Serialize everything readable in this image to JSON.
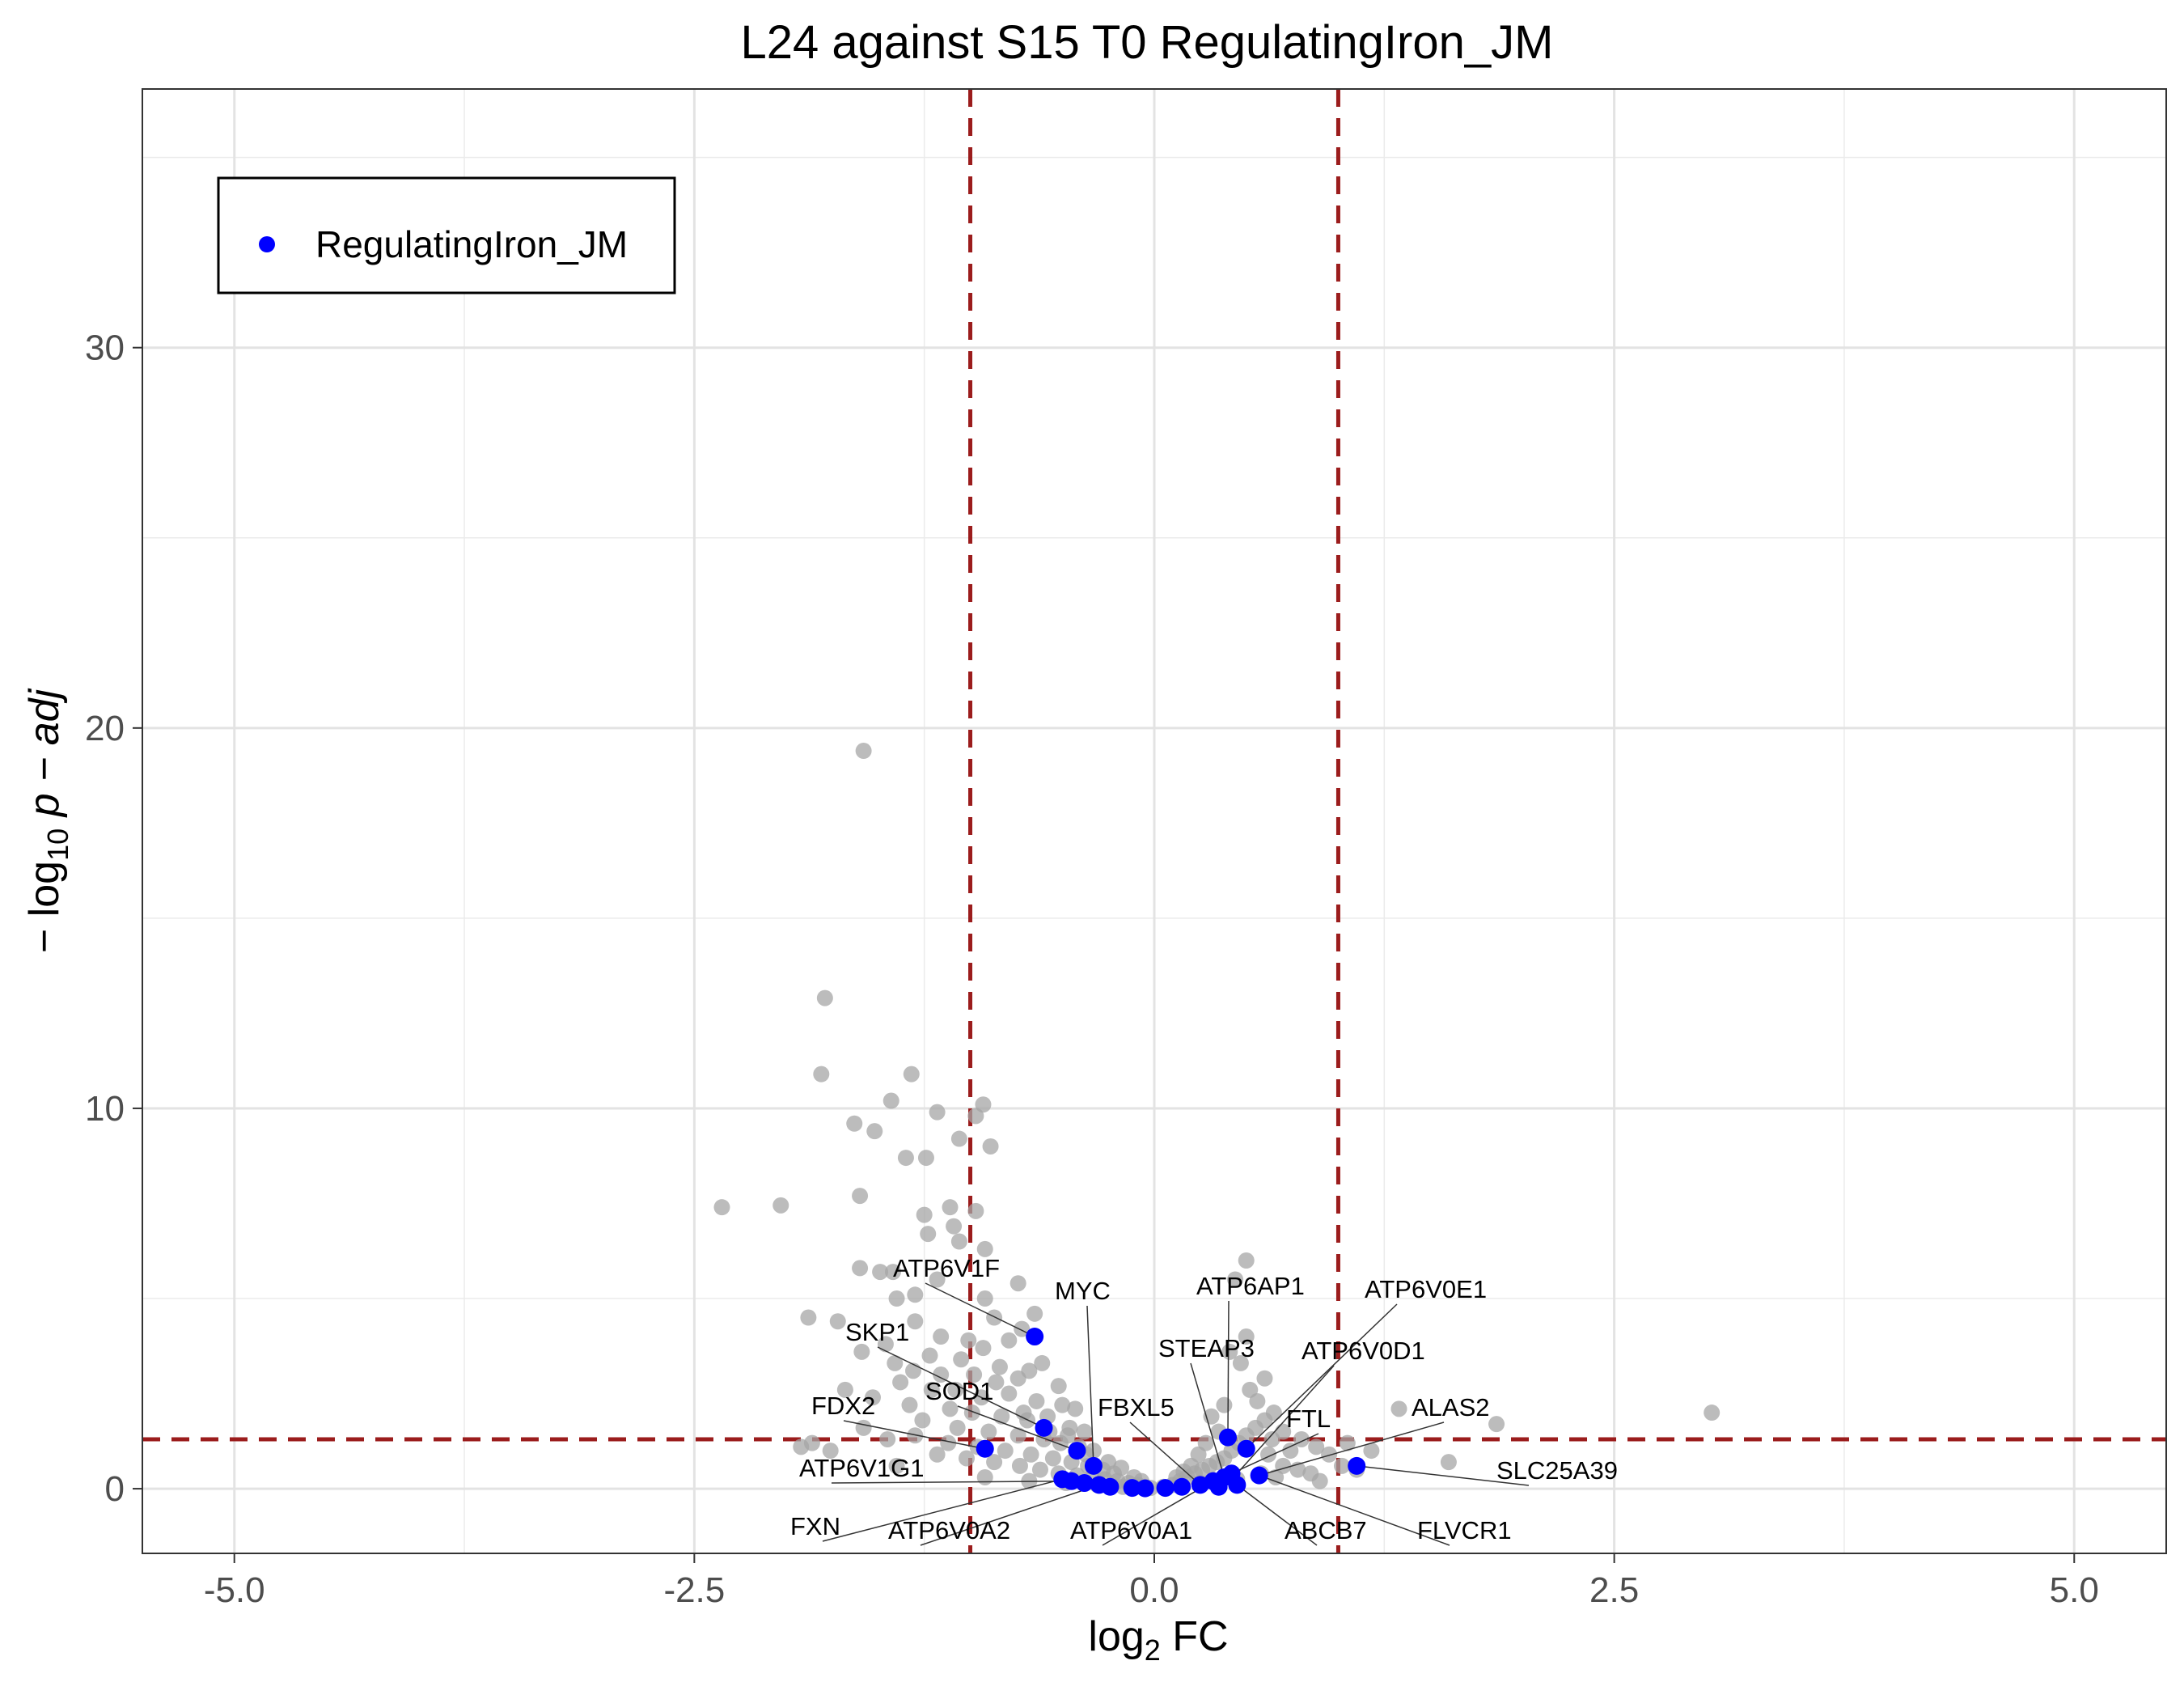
{
  "chart_data": {
    "type": "scatter",
    "title": "L24 against S15 T0 RegulatingIron_JM",
    "xlabel": "log2 FC",
    "ylabel": "-log10 p - adj",
    "xlim": [
      -5.5,
      5.5
    ],
    "ylim": [
      -1.7,
      36.8
    ],
    "x_ticks": [
      -5.0,
      -2.5,
      0.0,
      2.5,
      5.0
    ],
    "x_tick_labels": [
      "-5.0",
      "-2.5",
      "0.0",
      "2.5",
      "5.0"
    ],
    "y_ticks": [
      0,
      10,
      20,
      30
    ],
    "y_tick_labels": [
      "0",
      "10",
      "20",
      "30"
    ],
    "grid": true,
    "legend": {
      "position": "top-left",
      "entries": [
        "RegulatingIron_JM"
      ]
    },
    "thresholds": {
      "vertical": [
        -1,
        1
      ],
      "horizontal": 1.3,
      "color": "#9b1c1c"
    },
    "colors": {
      "background_genes": "#a6a6a6",
      "highlight": "#0000ff"
    },
    "series": [
      {
        "name": "",
        "color": "#a6a6a6",
        "points": [
          [
            -1.58,
            19.4
          ],
          [
            -1.79,
            12.9
          ],
          [
            -1.81,
            10.9
          ],
          [
            -1.32,
            10.9
          ],
          [
            -1.43,
            10.2
          ],
          [
            -0.93,
            10.1
          ],
          [
            -0.97,
            9.8
          ],
          [
            -1.63,
            9.6
          ],
          [
            -1.52,
            9.4
          ],
          [
            -1.18,
            9.9
          ],
          [
            -1.06,
            9.2
          ],
          [
            -0.89,
            9.0
          ],
          [
            -1.35,
            8.7
          ],
          [
            -1.24,
            8.7
          ],
          [
            -2.35,
            7.4
          ],
          [
            -2.03,
            7.45
          ],
          [
            -1.6,
            7.7
          ],
          [
            -1.11,
            7.4
          ],
          [
            -0.97,
            7.3
          ],
          [
            -1.25,
            7.2
          ],
          [
            -1.09,
            6.9
          ],
          [
            -1.23,
            6.7
          ],
          [
            -1.06,
            6.5
          ],
          [
            -0.92,
            6.3
          ],
          [
            -1.6,
            5.8
          ],
          [
            -1.49,
            5.7
          ],
          [
            -1.42,
            5.7
          ],
          [
            -1.18,
            5.5
          ],
          [
            -0.74,
            5.4
          ],
          [
            -1.3,
            5.1
          ],
          [
            -1.4,
            5.0
          ],
          [
            -0.92,
            5.0
          ],
          [
            -1.88,
            4.5
          ],
          [
            -1.72,
            4.4
          ],
          [
            -1.3,
            4.4
          ],
          [
            -0.87,
            4.5
          ],
          [
            -0.65,
            4.6
          ],
          [
            -0.72,
            4.2
          ],
          [
            -1.16,
            4.0
          ],
          [
            -1.46,
            3.8
          ],
          [
            -1.59,
            3.6
          ],
          [
            -1.41,
            3.3
          ],
          [
            -1.22,
            3.5
          ],
          [
            -1.05,
            3.4
          ],
          [
            -0.93,
            3.7
          ],
          [
            -0.79,
            3.9
          ],
          [
            -0.68,
            3.1
          ],
          [
            -0.61,
            3.3
          ],
          [
            -1.31,
            3.1
          ],
          [
            -1.16,
            3.0
          ],
          [
            -0.98,
            3.0
          ],
          [
            -0.84,
            3.2
          ],
          [
            -0.74,
            2.9
          ],
          [
            -0.52,
            2.7
          ],
          [
            -1.38,
            2.8
          ],
          [
            -1.21,
            2.6
          ],
          [
            -1.08,
            2.6
          ],
          [
            -0.94,
            2.4
          ],
          [
            -0.79,
            2.5
          ],
          [
            -0.64,
            2.3
          ],
          [
            -0.5,
            2.2
          ],
          [
            -0.43,
            2.1
          ],
          [
            -1.68,
            2.6
          ],
          [
            -1.53,
            2.4
          ],
          [
            -1.33,
            2.2
          ],
          [
            -1.11,
            2.1
          ],
          [
            -0.99,
            2.0
          ],
          [
            -0.83,
            1.9
          ],
          [
            -0.69,
            1.8
          ],
          [
            -0.58,
            1.9
          ],
          [
            -0.46,
            1.6
          ],
          [
            -0.38,
            1.5
          ],
          [
            -1.26,
            1.8
          ],
          [
            -1.07,
            1.6
          ],
          [
            -0.9,
            1.5
          ],
          [
            -0.74,
            1.4
          ],
          [
            -0.6,
            1.3
          ],
          [
            -0.51,
            1.2
          ],
          [
            -0.41,
            1.1
          ],
          [
            -0.33,
            1.0
          ],
          [
            -1.3,
            1.4
          ],
          [
            -1.12,
            1.2
          ],
          [
            -0.96,
            1.1
          ],
          [
            -0.81,
            1.0
          ],
          [
            -0.67,
            0.9
          ],
          [
            -0.55,
            0.8
          ],
          [
            -0.45,
            0.7
          ],
          [
            -0.36,
            0.6
          ],
          [
            -0.28,
            0.5
          ],
          [
            -0.22,
            0.4
          ],
          [
            -1.45,
            1.3
          ],
          [
            -1.18,
            0.9
          ],
          [
            -1.02,
            0.8
          ],
          [
            -0.87,
            0.7
          ],
          [
            -0.73,
            0.6
          ],
          [
            -0.62,
            0.5
          ],
          [
            -0.52,
            0.4
          ],
          [
            -0.42,
            0.35
          ],
          [
            -0.34,
            0.3
          ],
          [
            -0.27,
            0.25
          ],
          [
            -0.2,
            0.2
          ],
          [
            -0.14,
            0.15
          ],
          [
            -0.09,
            0.1
          ],
          [
            -0.05,
            0.05
          ],
          [
            -0.02,
            0.02
          ],
          [
            -1.76,
            1.0
          ],
          [
            -1.58,
            1.6
          ],
          [
            -1.4,
            0.6
          ],
          [
            -0.92,
            0.3
          ],
          [
            -0.68,
            0.2
          ],
          [
            -0.48,
            0.15
          ],
          [
            -0.31,
            0.1
          ],
          [
            -0.17,
            0.05
          ],
          [
            -1.92,
            1.1
          ],
          [
            -1.86,
            1.2
          ],
          [
            -1.01,
            3.9
          ],
          [
            -0.86,
            2.8
          ],
          [
            -0.71,
            2.0
          ],
          [
            -0.57,
            1.5
          ],
          [
            -0.47,
            1.4
          ],
          [
            -0.37,
            0.9
          ],
          [
            -0.25,
            0.7
          ],
          [
            -0.18,
            0.55
          ],
          [
            -0.11,
            0.3
          ],
          [
            -0.07,
            0.2
          ],
          [
            0.05,
            0.05
          ],
          [
            0.1,
            0.1
          ],
          [
            0.14,
            0.2
          ],
          [
            0.18,
            0.3
          ],
          [
            0.22,
            0.4
          ],
          [
            0.26,
            0.5
          ],
          [
            0.3,
            0.6
          ],
          [
            0.34,
            0.7
          ],
          [
            0.38,
            0.8
          ],
          [
            0.42,
            1.0
          ],
          [
            0.46,
            1.2
          ],
          [
            0.5,
            1.4
          ],
          [
            0.55,
            1.6
          ],
          [
            0.6,
            1.8
          ],
          [
            0.65,
            2.0
          ],
          [
            0.52,
            2.6
          ],
          [
            0.6,
            2.9
          ],
          [
            0.47,
            3.3
          ],
          [
            0.41,
            3.6
          ],
          [
            0.5,
            4.0
          ],
          [
            0.56,
            2.3
          ],
          [
            0.7,
            1.5
          ],
          [
            0.8,
            1.3
          ],
          [
            0.88,
            1.1
          ],
          [
            0.95,
            0.9
          ],
          [
            0.5,
            6.0
          ],
          [
            0.44,
            5.5
          ],
          [
            0.38,
            2.2
          ],
          [
            0.31,
            1.9
          ],
          [
            0.35,
            1.5
          ],
          [
            0.28,
            1.2
          ],
          [
            0.24,
            0.9
          ],
          [
            0.2,
            0.6
          ],
          [
            0.16,
            0.45
          ],
          [
            0.12,
            0.3
          ],
          [
            0.7,
            0.6
          ],
          [
            0.78,
            0.5
          ],
          [
            0.85,
            0.4
          ],
          [
            1.02,
            0.6
          ],
          [
            1.1,
            0.5
          ],
          [
            1.05,
            1.2
          ],
          [
            1.18,
            1.0
          ],
          [
            1.33,
            2.1
          ],
          [
            1.86,
            1.7
          ],
          [
            1.6,
            0.7
          ],
          [
            3.03,
            2.0
          ],
          [
            0.62,
            0.9
          ],
          [
            0.58,
            0.4
          ],
          [
            0.66,
            0.3
          ],
          [
            0.45,
            0.25
          ],
          [
            0.33,
            0.2
          ],
          [
            0.25,
            0.15
          ],
          [
            0.9,
            0.2
          ],
          [
            0.74,
            1.0
          ],
          [
            0.64,
            1.3
          ]
        ]
      },
      {
        "name": "RegulatingIron_JM",
        "color": "#0000ff",
        "points": [
          [
            -0.65,
            4.0
          ],
          [
            -0.6,
            1.6
          ],
          [
            -0.42,
            1.0
          ],
          [
            -0.33,
            0.6
          ],
          [
            -0.92,
            1.05
          ],
          [
            -0.5,
            0.25
          ],
          [
            -0.45,
            0.2
          ],
          [
            -0.38,
            0.15
          ],
          [
            -0.3,
            0.1
          ],
          [
            -0.24,
            0.05
          ],
          [
            -0.12,
            0.02
          ],
          [
            -0.05,
            0.01
          ],
          [
            0.06,
            0.02
          ],
          [
            0.15,
            0.05
          ],
          [
            0.25,
            0.1
          ],
          [
            0.32,
            0.2
          ],
          [
            0.38,
            0.3
          ],
          [
            0.42,
            0.4
          ],
          [
            0.4,
            1.35
          ],
          [
            0.5,
            1.05
          ],
          [
            0.57,
            0.35
          ],
          [
            1.1,
            0.6
          ],
          [
            0.45,
            0.1
          ],
          [
            0.35,
            0.05
          ]
        ]
      }
    ],
    "annotations": [
      {
        "label": "ATP6V1F",
        "x": -0.65,
        "y": 4.0
      },
      {
        "label": "SKP1",
        "x": -0.6,
        "y": 1.6
      },
      {
        "label": "MYC",
        "x": -0.33,
        "y": 0.6
      },
      {
        "label": "SOD1",
        "x": -0.42,
        "y": 1.0
      },
      {
        "label": "FDX2",
        "x": -0.92,
        "y": 1.05
      },
      {
        "label": "ATP6V1G1",
        "x": -0.45,
        "y": 0.2
      },
      {
        "label": "FXN",
        "x": -0.5,
        "y": 0.25
      },
      {
        "label": "ATP6V0A2",
        "x": -0.3,
        "y": 0.1
      },
      {
        "label": "ATP6V0A1",
        "x": 0.32,
        "y": 0.2
      },
      {
        "label": "FBXL5",
        "x": 0.25,
        "y": 0.1
      },
      {
        "label": "STEAP3",
        "x": 0.38,
        "y": 0.3
      },
      {
        "label": "ATP6AP1",
        "x": 0.4,
        "y": 1.35
      },
      {
        "label": "ATP6V0E1",
        "x": 0.5,
        "y": 1.05
      },
      {
        "label": "ATP6V0D1",
        "x": 0.45,
        "y": 0.4
      },
      {
        "label": "FTL",
        "x": 0.42,
        "y": 0.4
      },
      {
        "label": "ABCB7",
        "x": 0.45,
        "y": 0.1
      },
      {
        "label": "FLVCR1",
        "x": 0.57,
        "y": 0.35
      },
      {
        "label": "ALAS2",
        "x": 0.57,
        "y": 0.35
      },
      {
        "label": "SLC25A39",
        "x": 1.1,
        "y": 0.6
      }
    ]
  }
}
